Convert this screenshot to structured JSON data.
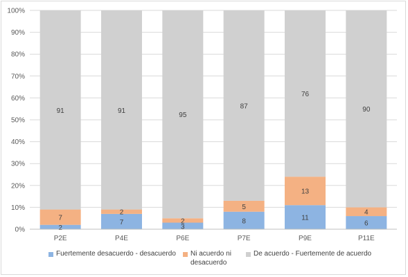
{
  "chart_data": {
    "type": "bar",
    "stacked": "percent",
    "categories": [
      "P2E",
      "P4E",
      "P6E",
      "P7E",
      "P9E",
      "P11E"
    ],
    "series": [
      {
        "name": "Fuertemente desacuerdo - desacuerdo",
        "values": [
          2,
          7,
          3,
          8,
          11,
          6
        ],
        "color": "#8db4e2"
      },
      {
        "name": "Ni acuerdo ni desacuerdo",
        "values": [
          7,
          2,
          2,
          5,
          13,
          4
        ],
        "color": "#f4b183"
      },
      {
        "name": "De acuerdo - Fuertemente de acuerdo",
        "values": [
          91,
          91,
          95,
          87,
          76,
          90
        ],
        "color": "#d0d0d0"
      }
    ],
    "yticks": [
      "0%",
      "10%",
      "20%",
      "30%",
      "40%",
      "50%",
      "60%",
      "70%",
      "80%",
      "90%",
      "100%"
    ],
    "ylim": [
      0,
      100
    ],
    "grid": true,
    "legend_position": "bottom",
    "legend": [
      {
        "line1": "Fuertemente desacuerdo - desacuerdo",
        "line2": ""
      },
      {
        "line1": "Ni acuerdo ni",
        "line2": "desacuerdo"
      },
      {
        "line1": "De acuerdo - Fuertemente de acuerdo",
        "line2": ""
      }
    ]
  }
}
